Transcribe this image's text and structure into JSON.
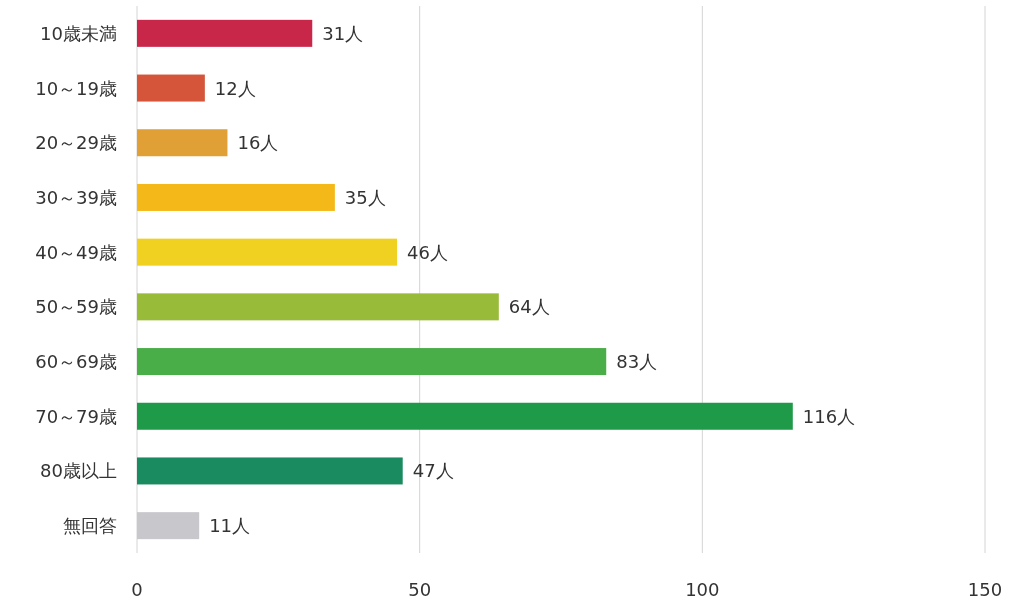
{
  "chart_data": {
    "type": "bar",
    "orientation": "horizontal",
    "categories": [
      "10歳未満",
      "10～19歳",
      "20～29歳",
      "30～39歳",
      "40～49歳",
      "50～59歳",
      "60～69歳",
      "70～79歳",
      "80歳以上",
      "無回答"
    ],
    "values": [
      31,
      12,
      16,
      35,
      46,
      64,
      83,
      116,
      47,
      11
    ],
    "colors": [
      "#c8274a",
      "#d4553a",
      "#e0a035",
      "#f5b819",
      "#f0d020",
      "#99bb3a",
      "#4aae48",
      "#1e9a48",
      "#1a8a60",
      "#c8c8cc"
    ],
    "value_labels": [
      "31人",
      "12人",
      "16人",
      "35人",
      "46人",
      "64人",
      "83人",
      "116人",
      "47人",
      "11人"
    ],
    "xlim": [
      0,
      150
    ],
    "xticks": [
      0,
      50,
      100,
      150
    ],
    "grid": "x"
  }
}
